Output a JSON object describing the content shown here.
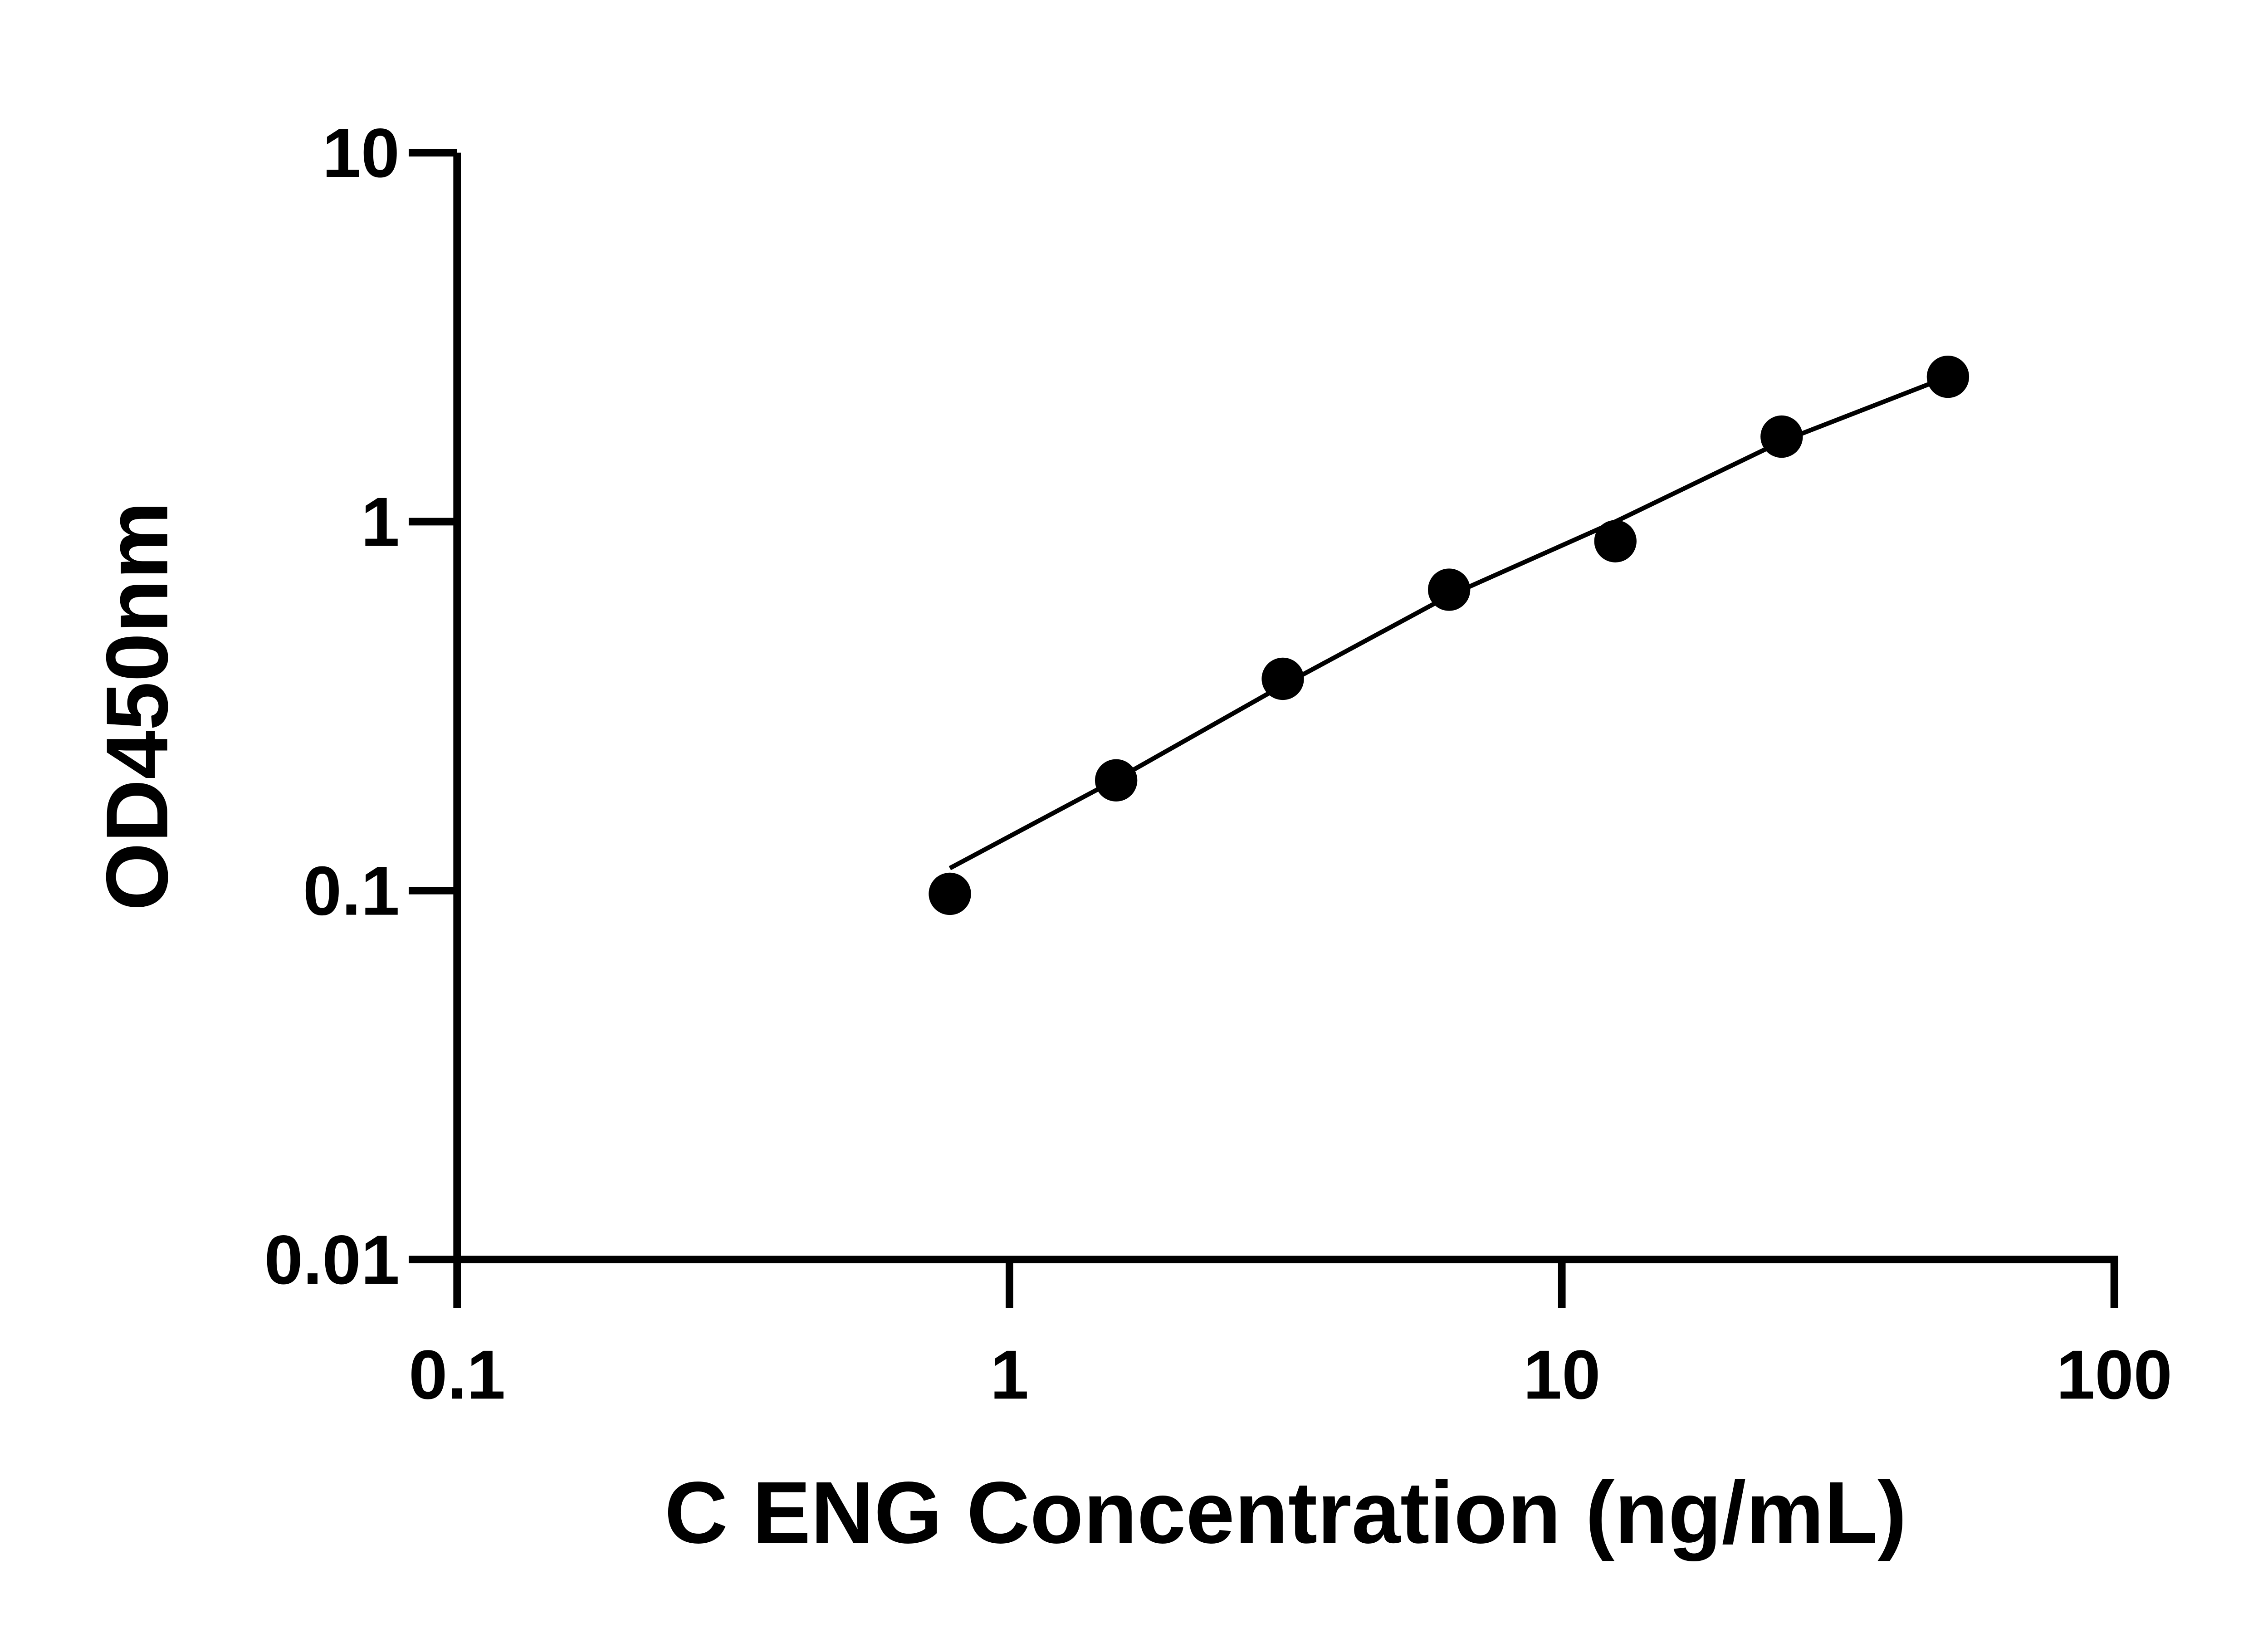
{
  "chart_data": {
    "type": "scatter",
    "x_label": "C ENG Concentration (ng/mL)",
    "y_label": "OD450nm",
    "x_log": true,
    "y_log": true,
    "xlim": [
      0.1,
      100
    ],
    "ylim": [
      0.01,
      10
    ],
    "xticks": [
      0.1,
      1,
      10,
      100
    ],
    "yticks": [
      0.01,
      0.1,
      1,
      10
    ],
    "color": "#000000",
    "x": [
      0.78,
      1.56,
      3.125,
      6.25,
      12.5,
      25,
      50
    ],
    "values": [
      0.098,
      0.199,
      0.375,
      0.654,
      0.885,
      1.7,
      2.47
    ],
    "fit": {
      "x": [
        0.78,
        1.56,
        3.125,
        6.25,
        12.5,
        25,
        50
      ],
      "values": [
        0.115,
        0.2,
        0.36,
        0.63,
        1.0,
        1.65,
        2.47
      ]
    }
  }
}
